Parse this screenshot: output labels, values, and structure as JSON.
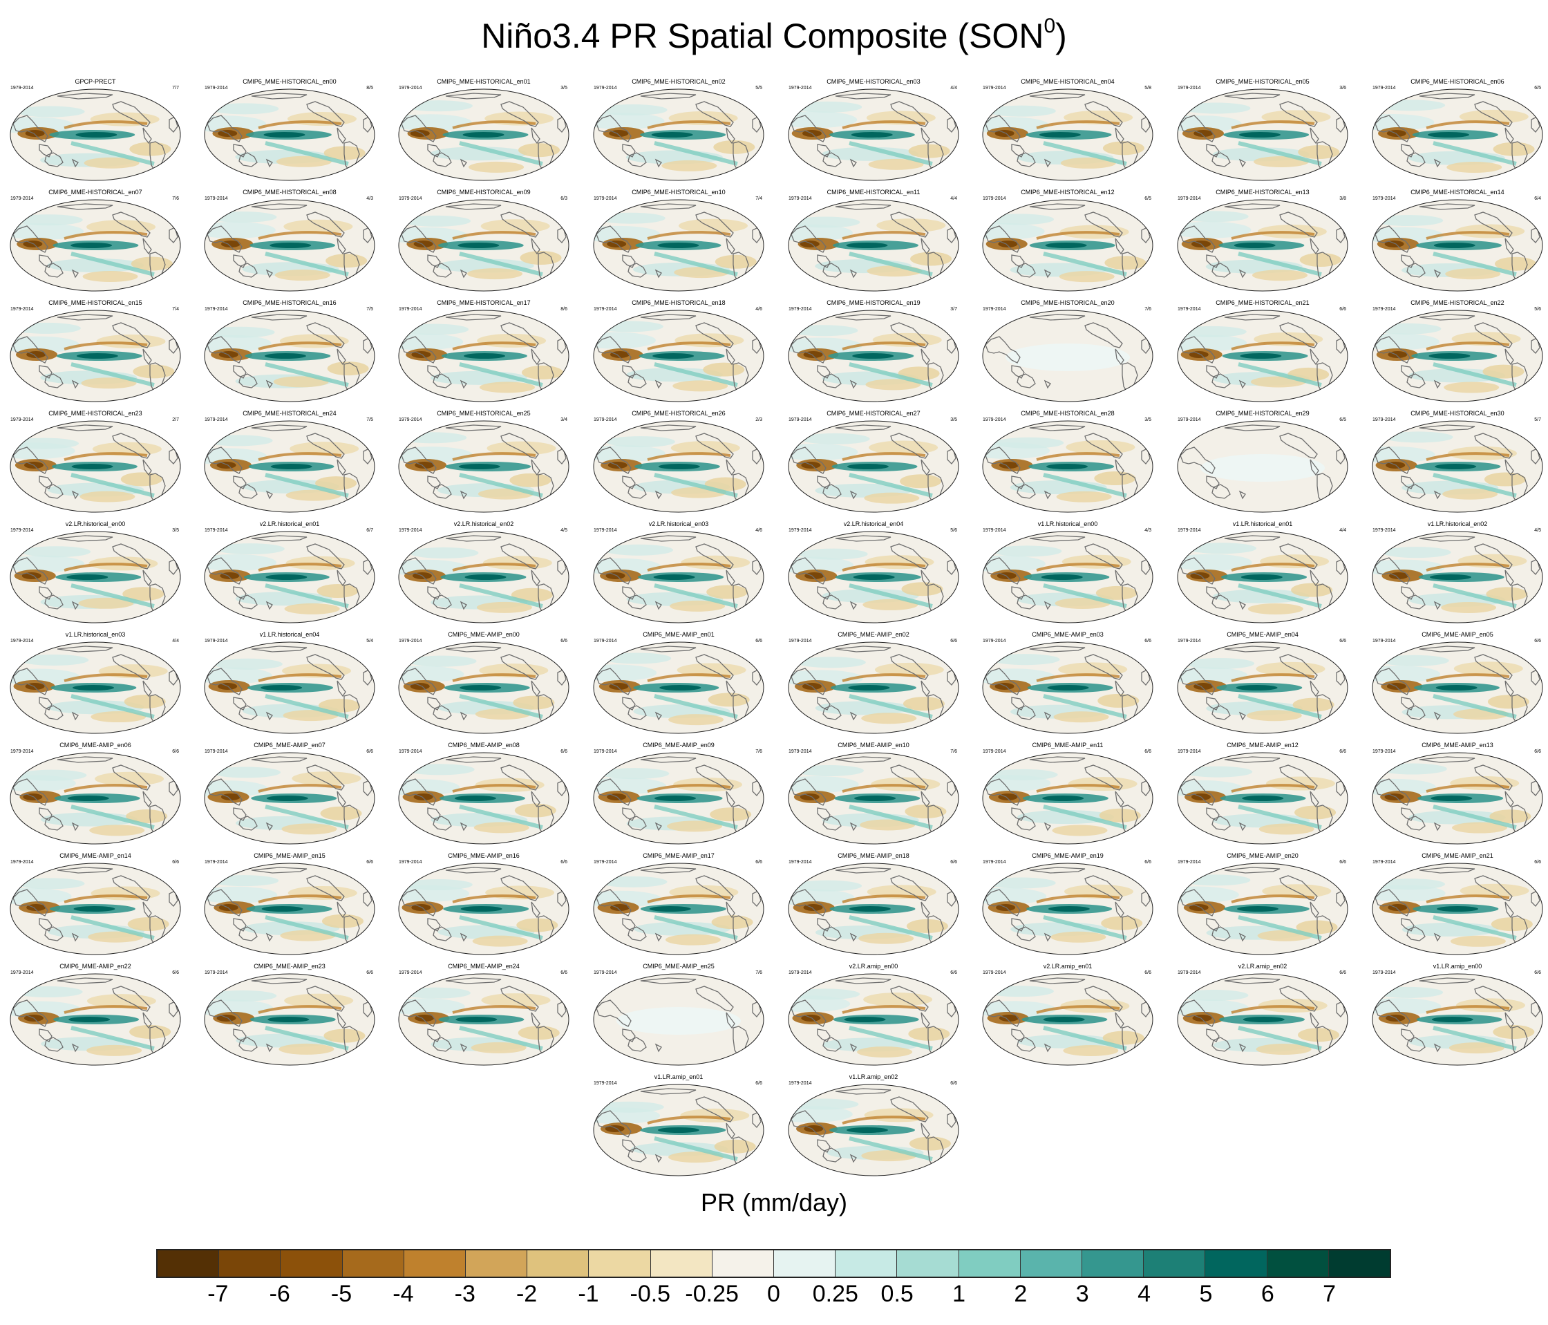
{
  "title_main": "Niño3.4 PR Spatial Composite (SON",
  "title_sup": "0",
  "title_close": ")",
  "chart_data": {
    "type": "heatmap",
    "description_variable": "PR",
    "colorbar_label": "PR (mm/day)",
    "colorbar_ticks": [
      "-7",
      "-6",
      "-5",
      "-4",
      "-3",
      "-2",
      "-1",
      "-0.5",
      "-0.25",
      "0",
      "0.25",
      "0.5",
      "1",
      "2",
      "3",
      "4",
      "5",
      "6",
      "7"
    ],
    "colorbar_colors": [
      "#543005",
      "#7a4608",
      "#8c510a",
      "#a66a1c",
      "#bf812d",
      "#d2a559",
      "#dfc27d",
      "#ecd8a3",
      "#f3e6c2",
      "#f5f2ea",
      "#e6f3f1",
      "#c7eae5",
      "#a6dcd3",
      "#80cdc1",
      "#5ab4ac",
      "#35978f",
      "#1d8076",
      "#01665e",
      "#01503f",
      "#003c30"
    ],
    "panels": [
      {
        "title": "GPCP-PRECT",
        "period": "1979-2014",
        "count": "7/7"
      },
      {
        "title": "CMIP6_MME-HISTORICAL_en00",
        "period": "1979-2014",
        "count": "8/5"
      },
      {
        "title": "CMIP6_MME-HISTORICAL_en01",
        "period": "1979-2014",
        "count": "3/5"
      },
      {
        "title": "CMIP6_MME-HISTORICAL_en02",
        "period": "1979-2014",
        "count": "5/5"
      },
      {
        "title": "CMIP6_MME-HISTORICAL_en03",
        "period": "1979-2014",
        "count": "4/4"
      },
      {
        "title": "CMIP6_MME-HISTORICAL_en04",
        "period": "1979-2014",
        "count": "5/8"
      },
      {
        "title": "CMIP6_MME-HISTORICAL_en05",
        "period": "1979-2014",
        "count": "3/6"
      },
      {
        "title": "CMIP6_MME-HISTORICAL_en06",
        "period": "1979-2014",
        "count": "6/5"
      },
      {
        "title": "CMIP6_MME-HISTORICAL_en07",
        "period": "1979-2014",
        "count": "7/6"
      },
      {
        "title": "CMIP6_MME-HISTORICAL_en08",
        "period": "1979-2014",
        "count": "4/3"
      },
      {
        "title": "CMIP6_MME-HISTORICAL_en09",
        "period": "1979-2014",
        "count": "6/3"
      },
      {
        "title": "CMIP6_MME-HISTORICAL_en10",
        "period": "1979-2014",
        "count": "7/4"
      },
      {
        "title": "CMIP6_MME-HISTORICAL_en11",
        "period": "1979-2014",
        "count": "4/4"
      },
      {
        "title": "CMIP6_MME-HISTORICAL_en12",
        "period": "1979-2014",
        "count": "6/5"
      },
      {
        "title": "CMIP6_MME-HISTORICAL_en13",
        "period": "1979-2014",
        "count": "3/8"
      },
      {
        "title": "CMIP6_MME-HISTORICAL_en14",
        "period": "1979-2014",
        "count": "6/4"
      },
      {
        "title": "CMIP6_MME-HISTORICAL_en15",
        "period": "1979-2014",
        "count": "7/4"
      },
      {
        "title": "CMIP6_MME-HISTORICAL_en16",
        "period": "1979-2014",
        "count": "7/5"
      },
      {
        "title": "CMIP6_MME-HISTORICAL_en17",
        "period": "1979-2014",
        "count": "8/6"
      },
      {
        "title": "CMIP6_MME-HISTORICAL_en18",
        "period": "1979-2014",
        "count": "4/6"
      },
      {
        "title": "CMIP6_MME-HISTORICAL_en19",
        "period": "1979-2014",
        "count": "3/7"
      },
      {
        "title": "CMIP6_MME-HISTORICAL_en20",
        "period": "1979-2014",
        "count": "7/6"
      },
      {
        "title": "CMIP6_MME-HISTORICAL_en21",
        "period": "1979-2014",
        "count": "6/6"
      },
      {
        "title": "CMIP6_MME-HISTORICAL_en22",
        "period": "1979-2014",
        "count": "5/6"
      },
      {
        "title": "CMIP6_MME-HISTORICAL_en23",
        "period": "1979-2014",
        "count": "2/7"
      },
      {
        "title": "CMIP6_MME-HISTORICAL_en24",
        "period": "1979-2014",
        "count": "7/5"
      },
      {
        "title": "CMIP6_MME-HISTORICAL_en25",
        "period": "1979-2014",
        "count": "3/4"
      },
      {
        "title": "CMIP6_MME-HISTORICAL_en26",
        "period": "1979-2014",
        "count": "2/3"
      },
      {
        "title": "CMIP6_MME-HISTORICAL_en27",
        "period": "1979-2014",
        "count": "3/5"
      },
      {
        "title": "CMIP6_MME-HISTORICAL_en28",
        "period": "1979-2014",
        "count": "3/5"
      },
      {
        "title": "CMIP6_MME-HISTORICAL_en29",
        "period": "1979-2014",
        "count": "6/5"
      },
      {
        "title": "CMIP6_MME-HISTORICAL_en30",
        "period": "1979-2014",
        "count": "5/7"
      },
      {
        "title": "v2.LR.historical_en00",
        "period": "1979-2014",
        "count": "3/5"
      },
      {
        "title": "v2.LR.historical_en01",
        "period": "1979-2014",
        "count": "6/7"
      },
      {
        "title": "v2.LR.historical_en02",
        "period": "1979-2014",
        "count": "4/5"
      },
      {
        "title": "v2.LR.historical_en03",
        "period": "1979-2014",
        "count": "4/6"
      },
      {
        "title": "v2.LR.historical_en04",
        "period": "1979-2014",
        "count": "5/6"
      },
      {
        "title": "v1.LR.historical_en00",
        "period": "1979-2014",
        "count": "4/3"
      },
      {
        "title": "v1.LR.historical_en01",
        "period": "1979-2014",
        "count": "4/4"
      },
      {
        "title": "v1.LR.historical_en02",
        "period": "1979-2014",
        "count": "4/5"
      },
      {
        "title": "v1.LR.historical_en03",
        "period": "1979-2014",
        "count": "4/4"
      },
      {
        "title": "v1.LR.historical_en04",
        "period": "1979-2014",
        "count": "5/4"
      },
      {
        "title": "CMIP6_MME-AMIP_en00",
        "period": "1979-2014",
        "count": "6/6"
      },
      {
        "title": "CMIP6_MME-AMIP_en01",
        "period": "1979-2014",
        "count": "6/6"
      },
      {
        "title": "CMIP6_MME-AMIP_en02",
        "period": "1979-2014",
        "count": "6/6"
      },
      {
        "title": "CMIP6_MME-AMIP_en03",
        "period": "1979-2014",
        "count": "6/6"
      },
      {
        "title": "CMIP6_MME-AMIP_en04",
        "period": "1979-2014",
        "count": "6/6"
      },
      {
        "title": "CMIP6_MME-AMIP_en05",
        "period": "1979-2014",
        "count": "6/6"
      },
      {
        "title": "CMIP6_MME-AMIP_en06",
        "period": "1979-2014",
        "count": "6/6"
      },
      {
        "title": "CMIP6_MME-AMIP_en07",
        "period": "1979-2014",
        "count": "6/6"
      },
      {
        "title": "CMIP6_MME-AMIP_en08",
        "period": "1979-2014",
        "count": "6/6"
      },
      {
        "title": "CMIP6_MME-AMIP_en09",
        "period": "1979-2014",
        "count": "7/6"
      },
      {
        "title": "CMIP6_MME-AMIP_en10",
        "period": "1979-2014",
        "count": "7/6"
      },
      {
        "title": "CMIP6_MME-AMIP_en11",
        "period": "1979-2014",
        "count": "6/6"
      },
      {
        "title": "CMIP6_MME-AMIP_en12",
        "period": "1979-2014",
        "count": "6/6"
      },
      {
        "title": "CMIP6_MME-AMIP_en13",
        "period": "1979-2014",
        "count": "6/6"
      },
      {
        "title": "CMIP6_MME-AMIP_en14",
        "period": "1979-2014",
        "count": "6/6"
      },
      {
        "title": "CMIP6_MME-AMIP_en15",
        "period": "1979-2014",
        "count": "6/6"
      },
      {
        "title": "CMIP6_MME-AMIP_en16",
        "period": "1979-2014",
        "count": "6/6"
      },
      {
        "title": "CMIP6_MME-AMIP_en17",
        "period": "1979-2014",
        "count": "6/6"
      },
      {
        "title": "CMIP6_MME-AMIP_en18",
        "period": "1979-2014",
        "count": "6/6"
      },
      {
        "title": "CMIP6_MME-AMIP_en19",
        "period": "1979-2014",
        "count": "6/6"
      },
      {
        "title": "CMIP6_MME-AMIP_en20",
        "period": "1979-2014",
        "count": "6/6"
      },
      {
        "title": "CMIP6_MME-AMIP_en21",
        "period": "1979-2014",
        "count": "6/6"
      },
      {
        "title": "CMIP6_MME-AMIP_en22",
        "period": "1979-2014",
        "count": "6/6"
      },
      {
        "title": "CMIP6_MME-AMIP_en23",
        "period": "1979-2014",
        "count": "6/6"
      },
      {
        "title": "CMIP6_MME-AMIP_en24",
        "period": "1979-2014",
        "count": "6/6"
      },
      {
        "title": "CMIP6_MME-AMIP_en25",
        "period": "1979-2014",
        "count": "7/6"
      },
      {
        "title": "v2.LR.amip_en00",
        "period": "1979-2014",
        "count": "6/6"
      },
      {
        "title": "v2.LR.amip_en01",
        "period": "1979-2014",
        "count": "6/6"
      },
      {
        "title": "v2.LR.amip_en02",
        "period": "1979-2014",
        "count": "6/6"
      },
      {
        "title": "v1.LR.amip_en00",
        "period": "1979-2014",
        "count": "6/6"
      },
      {
        "title": "v1.LR.amip_en01",
        "period": "1979-2014",
        "count": "6/6"
      },
      {
        "title": "v1.LR.amip_en02",
        "period": "1979-2014",
        "count": "6/6"
      }
    ],
    "weak_panels": [
      "CMIP6_MME-HISTORICAL_en20",
      "CMIP6_MME-HISTORICAL_en29",
      "CMIP6_MME-AMIP_en25"
    ]
  }
}
